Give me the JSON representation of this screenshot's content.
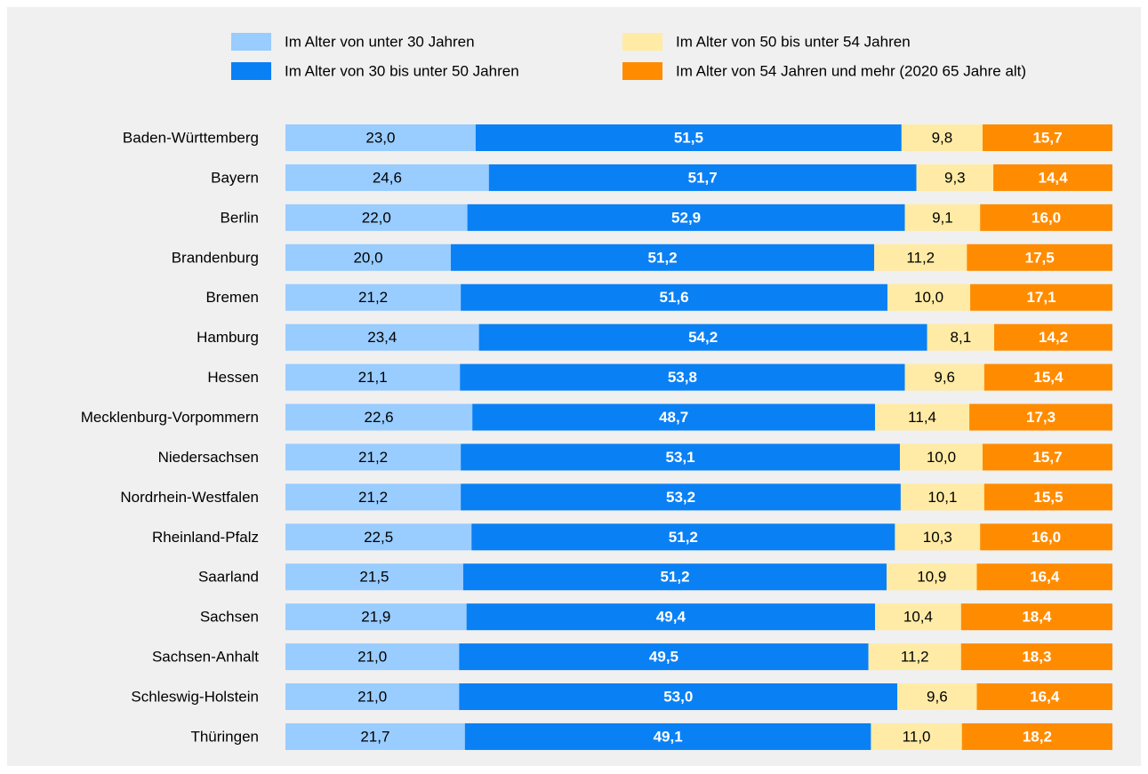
{
  "chart_data": {
    "type": "stacked_barh",
    "categories": [
      "Baden-Württemberg",
      "Bayern",
      "Berlin",
      "Brandenburg",
      "Bremen",
      "Hamburg",
      "Hessen",
      "Mecklenburg-Vorpommern",
      "Niedersachsen",
      "Nordrhein-Westfalen",
      "Rheinland-Pfalz",
      "Saarland",
      "Sachsen",
      "Sachsen-Anhalt",
      "Schleswig-Holstein",
      "Thüringen"
    ],
    "xlim": [
      0,
      100
    ],
    "series": [
      {
        "name": "Im Alter von unter 30 Jahren",
        "color": "#99ccff",
        "label_color": "#000000",
        "values": [
          23.0,
          24.6,
          22.0,
          20.0,
          21.2,
          23.4,
          21.1,
          22.6,
          21.2,
          21.2,
          22.5,
          21.5,
          21.9,
          21.0,
          21.0,
          21.7
        ],
        "value_labels": [
          "23,0",
          "24,6",
          "22,0",
          "20,0",
          "21,2",
          "23,4",
          "21,1",
          "22,6",
          "21,2",
          "21,2",
          "22,5",
          "21,5",
          "21,9",
          "21,0",
          "21,0",
          "21,7"
        ]
      },
      {
        "name": "Im Alter von 30 bis unter 50 Jahren",
        "color": "#0a80f5",
        "label_color": "#ffffff",
        "values": [
          51.5,
          51.7,
          52.9,
          51.2,
          51.6,
          54.2,
          53.8,
          48.7,
          53.1,
          53.2,
          51.2,
          51.2,
          49.4,
          49.5,
          53.0,
          49.1
        ],
        "value_labels": [
          "51,5",
          "51,7",
          "52,9",
          "51,2",
          "51,6",
          "54,2",
          "53,8",
          "48,7",
          "53,1",
          "53,2",
          "51,2",
          "51,2",
          "49,4",
          "49,5",
          "53,0",
          "49,1"
        ]
      },
      {
        "name": "Im Alter von 50 bis unter 54 Jahren",
        "color": "#ffeba5",
        "label_color": "#000000",
        "values": [
          9.8,
          9.3,
          9.1,
          11.2,
          10.0,
          8.1,
          9.6,
          11.4,
          10.0,
          10.1,
          10.3,
          10.9,
          10.4,
          11.2,
          9.6,
          11.0
        ],
        "value_labels": [
          "9,8",
          "9,3",
          "9,1",
          "11,2",
          "10,0",
          "8,1",
          "9,6",
          "11,4",
          "10,0",
          "10,1",
          "10,3",
          "10,9",
          "10,4",
          "11,2",
          "9,6",
          "11,0"
        ]
      },
      {
        "name": "Im Alter von 54 Jahren und mehr (2020 65 Jahre alt)",
        "color": "#ff8c00",
        "label_color": "#ffffff",
        "values": [
          15.7,
          14.4,
          16.0,
          17.5,
          17.1,
          14.2,
          15.4,
          17.3,
          15.7,
          15.5,
          16.0,
          16.4,
          18.4,
          18.3,
          16.4,
          18.2
        ],
        "value_labels": [
          "15,7",
          "14,4",
          "16,0",
          "17,5",
          "17,1",
          "14,2",
          "15,4",
          "17,3",
          "15,7",
          "15,5",
          "16,0",
          "16,4",
          "18,4",
          "18,3",
          "16,4",
          "18,2"
        ]
      }
    ]
  }
}
